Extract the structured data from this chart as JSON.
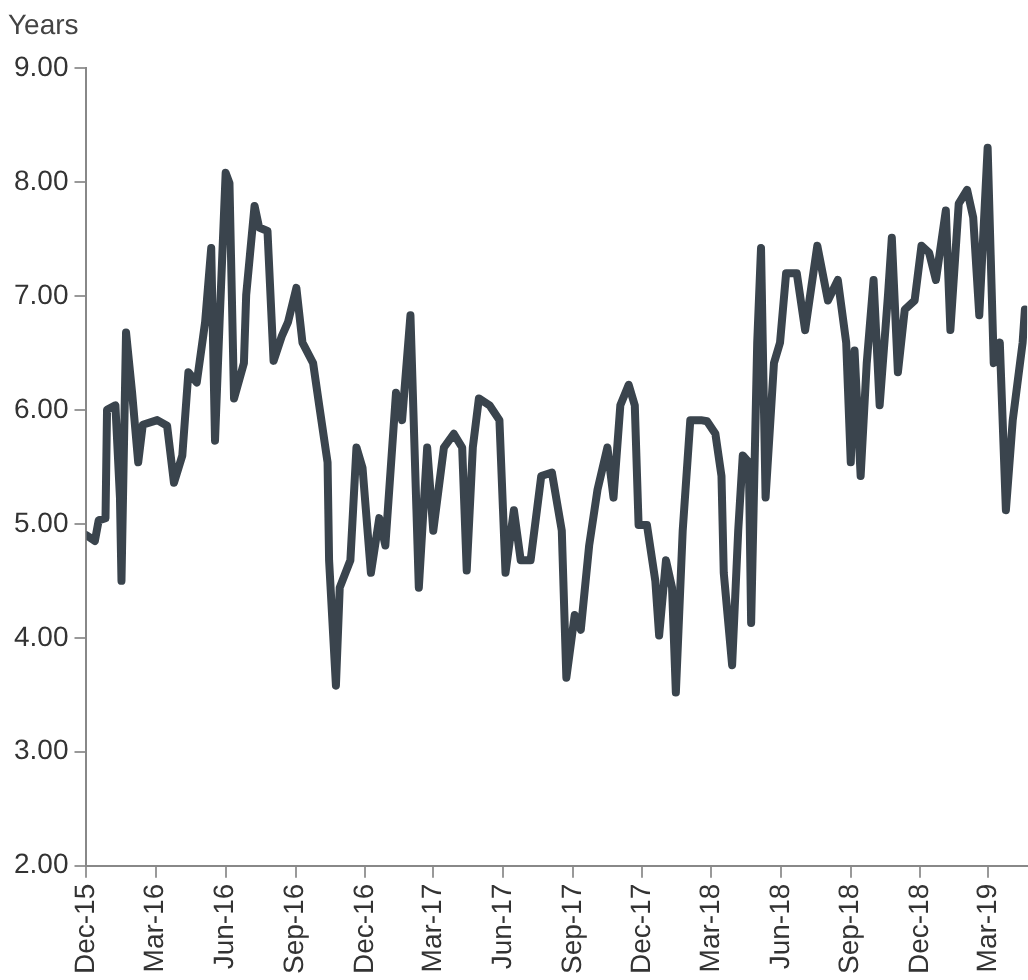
{
  "chart_data": {
    "type": "line",
    "ylabel": "Years",
    "x": [
      "2015-12-01",
      "2015-12-12",
      "2015-12-17",
      "2015-12-26",
      "2015-12-28",
      "2016-01-08",
      "2016-01-14",
      "2016-01-16",
      "2016-01-22",
      "2016-01-30",
      "2016-02-07",
      "2016-02-13",
      "2016-03-03",
      "2016-03-16",
      "2016-03-25",
      "2016-04-05",
      "2016-04-13",
      "2016-04-24",
      "2016-05-05",
      "2016-05-13",
      "2016-05-18",
      "2016-05-24",
      "2016-06-01",
      "2016-06-06",
      "2016-06-12",
      "2016-06-25",
      "2016-06-28",
      "2016-07-09",
      "2016-07-15",
      "2016-07-26",
      "2016-08-03",
      "2016-08-14",
      "2016-08-22",
      "2016-09-02",
      "2016-09-10",
      "2016-09-24",
      "2016-10-02",
      "2016-10-13",
      "2016-10-15",
      "2016-10-24",
      "2016-10-29",
      "2016-11-12",
      "2016-11-20",
      "2016-11-28",
      "2016-12-09",
      "2016-12-20",
      "2016-12-28",
      "2017-01-11",
      "2017-01-19",
      "2017-01-30",
      "2017-02-10",
      "2017-02-21",
      "2017-03-01",
      "2017-03-15",
      "2017-03-28",
      "2017-04-08",
      "2017-04-14",
      "2017-04-22",
      "2017-04-30",
      "2017-05-14",
      "2017-05-27",
      "2017-06-04",
      "2017-06-15",
      "2017-06-24",
      "2017-07-07",
      "2017-07-21",
      "2017-08-04",
      "2017-08-17",
      "2017-08-23",
      "2017-09-03",
      "2017-09-11",
      "2017-09-22",
      "2017-10-03",
      "2017-10-16",
      "2017-10-24",
      "2017-11-02",
      "2017-11-13",
      "2017-11-21",
      "2017-11-26",
      "2017-12-07",
      "2017-12-18",
      "2017-12-23",
      "2018-01-01",
      "2018-01-09",
      "2018-01-14",
      "2018-01-23",
      "2018-02-02",
      "2018-02-16",
      "2018-02-24",
      "2018-03-07",
      "2018-03-15",
      "2018-03-18",
      "2018-03-29",
      "2018-04-06",
      "2018-04-12",
      "2018-04-20",
      "2018-04-23",
      "2018-05-01",
      "2018-05-06",
      "2018-05-12",
      "2018-05-23",
      "2018-05-31",
      "2018-06-08",
      "2018-06-22",
      "2018-07-03",
      "2018-07-11",
      "2018-07-19",
      "2018-08-02",
      "2018-08-15",
      "2018-08-26",
      "2018-09-01",
      "2018-09-06",
      "2018-09-14",
      "2018-09-22",
      "2018-10-01",
      "2018-10-09",
      "2018-10-20",
      "2018-10-25",
      "2018-11-02",
      "2018-11-11",
      "2018-11-24",
      "2018-12-03",
      "2018-12-13",
      "2018-12-22",
      "2019-01-04",
      "2019-01-10",
      "2019-01-21",
      "2019-02-01",
      "2019-02-09",
      "2019-02-17",
      "2019-02-28",
      "2019-03-08",
      "2019-03-16",
      "2019-03-24",
      "2019-04-02",
      "2019-04-15",
      "2019-04-18"
    ],
    "series": [
      {
        "color": "#3a444d",
        "values": [
          4.9,
          4.85,
          5.03,
          5.05,
          6.0,
          6.04,
          5.23,
          4.5,
          6.68,
          6.15,
          5.54,
          5.87,
          5.91,
          5.86,
          5.36,
          5.6,
          6.33,
          6.24,
          6.77,
          7.42,
          5.73,
          6.77,
          8.08,
          7.99,
          6.1,
          6.41,
          7.01,
          7.79,
          7.6,
          7.57,
          6.43,
          6.65,
          6.77,
          7.07,
          6.59,
          6.41,
          6.04,
          5.54,
          4.68,
          3.58,
          4.44,
          4.68,
          5.67,
          5.49,
          4.57,
          5.05,
          4.81,
          6.15,
          5.91,
          6.83,
          4.44,
          5.67,
          4.94,
          5.67,
          5.79,
          5.67,
          4.59,
          5.67,
          6.1,
          6.04,
          5.91,
          4.57,
          5.12,
          4.68,
          4.68,
          5.42,
          5.45,
          4.94,
          3.65,
          4.2,
          4.07,
          4.81,
          5.3,
          5.67,
          5.23,
          6.04,
          6.22,
          6.04,
          4.99,
          4.99,
          4.5,
          4.02,
          4.68,
          4.44,
          3.52,
          4.94,
          5.91,
          5.91,
          5.9,
          5.79,
          5.42,
          4.57,
          3.76,
          4.94,
          5.6,
          5.54,
          4.13,
          6.59,
          7.42,
          5.23,
          6.41,
          6.59,
          7.2,
          7.2,
          6.7,
          7.07,
          7.44,
          6.96,
          7.14,
          6.59,
          5.54,
          6.52,
          5.42,
          6.41,
          7.14,
          6.04,
          7.01,
          7.51,
          6.33,
          6.88,
          6.96,
          7.44,
          7.38,
          7.14,
          7.75,
          6.7,
          7.81,
          7.93,
          7.69,
          6.83,
          8.3,
          6.41,
          6.59,
          5.12,
          5.91,
          6.59,
          6.88
        ]
      }
    ],
    "xlim": [
      "2015-12-01",
      "2019-04-21"
    ],
    "xticks": [
      {
        "value": "2015-12-01",
        "label": "Dec-15"
      },
      {
        "value": "2016-03-01",
        "label": "Mar-16"
      },
      {
        "value": "2016-06-01",
        "label": "Jun-16"
      },
      {
        "value": "2016-09-01",
        "label": "Sep-16"
      },
      {
        "value": "2016-12-01",
        "label": "Dec-16"
      },
      {
        "value": "2017-03-01",
        "label": "Mar-17"
      },
      {
        "value": "2017-06-01",
        "label": "Jun-17"
      },
      {
        "value": "2017-09-01",
        "label": "Sep-17"
      },
      {
        "value": "2017-12-01",
        "label": "Dec-17"
      },
      {
        "value": "2018-03-01",
        "label": "Mar-18"
      },
      {
        "value": "2018-06-01",
        "label": "Jun-18"
      },
      {
        "value": "2018-09-01",
        "label": "Sep-18"
      },
      {
        "value": "2018-12-01",
        "label": "Dec-18"
      },
      {
        "value": "2019-03-01",
        "label": "Mar-19"
      }
    ],
    "ylim": [
      2,
      9
    ],
    "yticks": [
      {
        "value": 2,
        "label": "2.00"
      },
      {
        "value": 3,
        "label": "3.00"
      },
      {
        "value": 4,
        "label": "4.00"
      },
      {
        "value": 5,
        "label": "5.00"
      },
      {
        "value": 6,
        "label": "6.00"
      },
      {
        "value": 7,
        "label": "7.00"
      },
      {
        "value": 8,
        "label": "8.00"
      },
      {
        "value": 9,
        "label": "9.00"
      }
    ],
    "grid": false,
    "legend": false,
    "marker": "none",
    "line_style": "solid"
  }
}
